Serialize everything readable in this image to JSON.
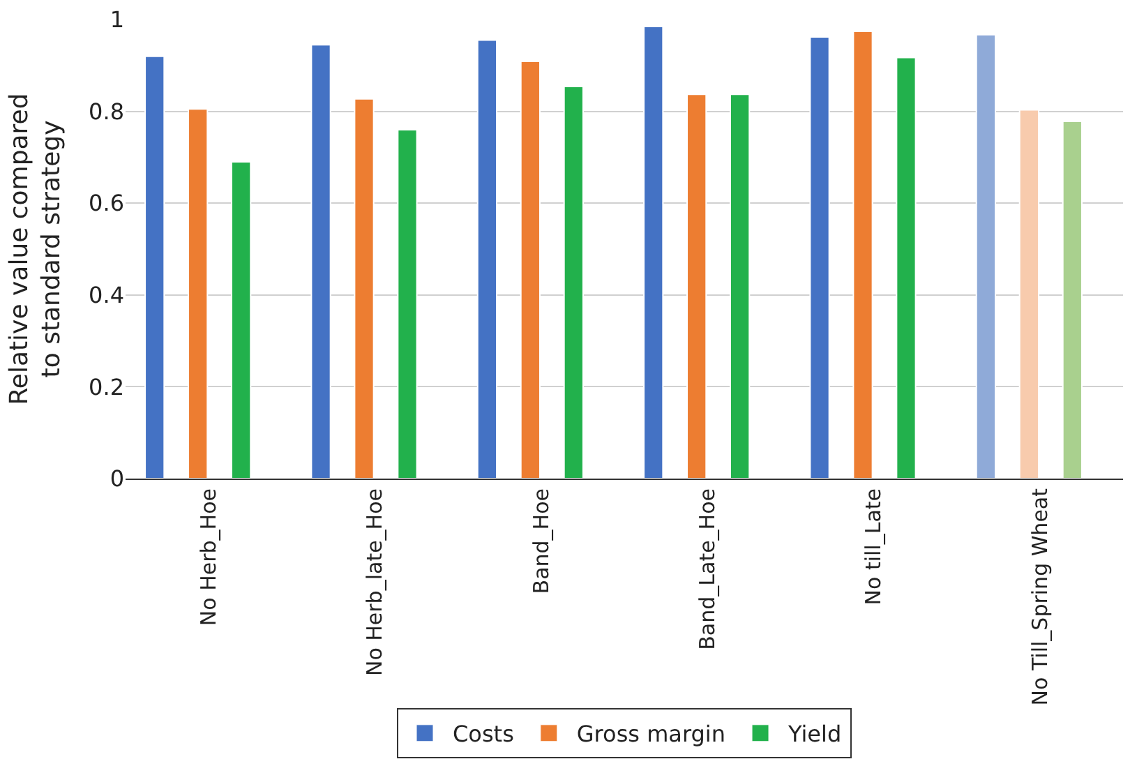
{
  "chart_data": {
    "type": "bar",
    "ylabel": "Relative value compared\nto standard strategy",
    "categories": [
      "No Herb_Hoe",
      "No Herb_late_Hoe",
      "Band_Hoe",
      "Band_Late_Hoe",
      "No till_Late",
      "No Till_Spring Wheat"
    ],
    "series": [
      {
        "name": "Costs",
        "color": "#4472c4",
        "colors": [
          "#4472c4",
          "#4472c4",
          "#4472c4",
          "#4472c4",
          "#4472c4",
          "#8faad8"
        ],
        "values": [
          0.92,
          0.945,
          0.955,
          0.985,
          0.962,
          0.967
        ]
      },
      {
        "name": "Gross margin",
        "color": "#ed7d31",
        "colors": [
          "#ed7d31",
          "#ed7d31",
          "#ed7d31",
          "#ed7d31",
          "#ed7d31",
          "#f8cbad"
        ],
        "values": [
          0.805,
          0.827,
          0.909,
          0.837,
          0.974,
          0.803
        ]
      },
      {
        "name": "Yield",
        "color": "#22b14c",
        "colors": [
          "#22b14c",
          "#22b14c",
          "#22b14c",
          "#22b14c",
          "#22b14c",
          "#a9d08e"
        ],
        "values": [
          0.69,
          0.76,
          0.854,
          0.837,
          0.917,
          0.778
        ]
      }
    ],
    "ylim": [
      0,
      1
    ],
    "yticks": [
      0,
      0.2,
      0.4,
      0.6,
      0.8,
      1
    ],
    "grid": "y",
    "legend": "bottom"
  }
}
